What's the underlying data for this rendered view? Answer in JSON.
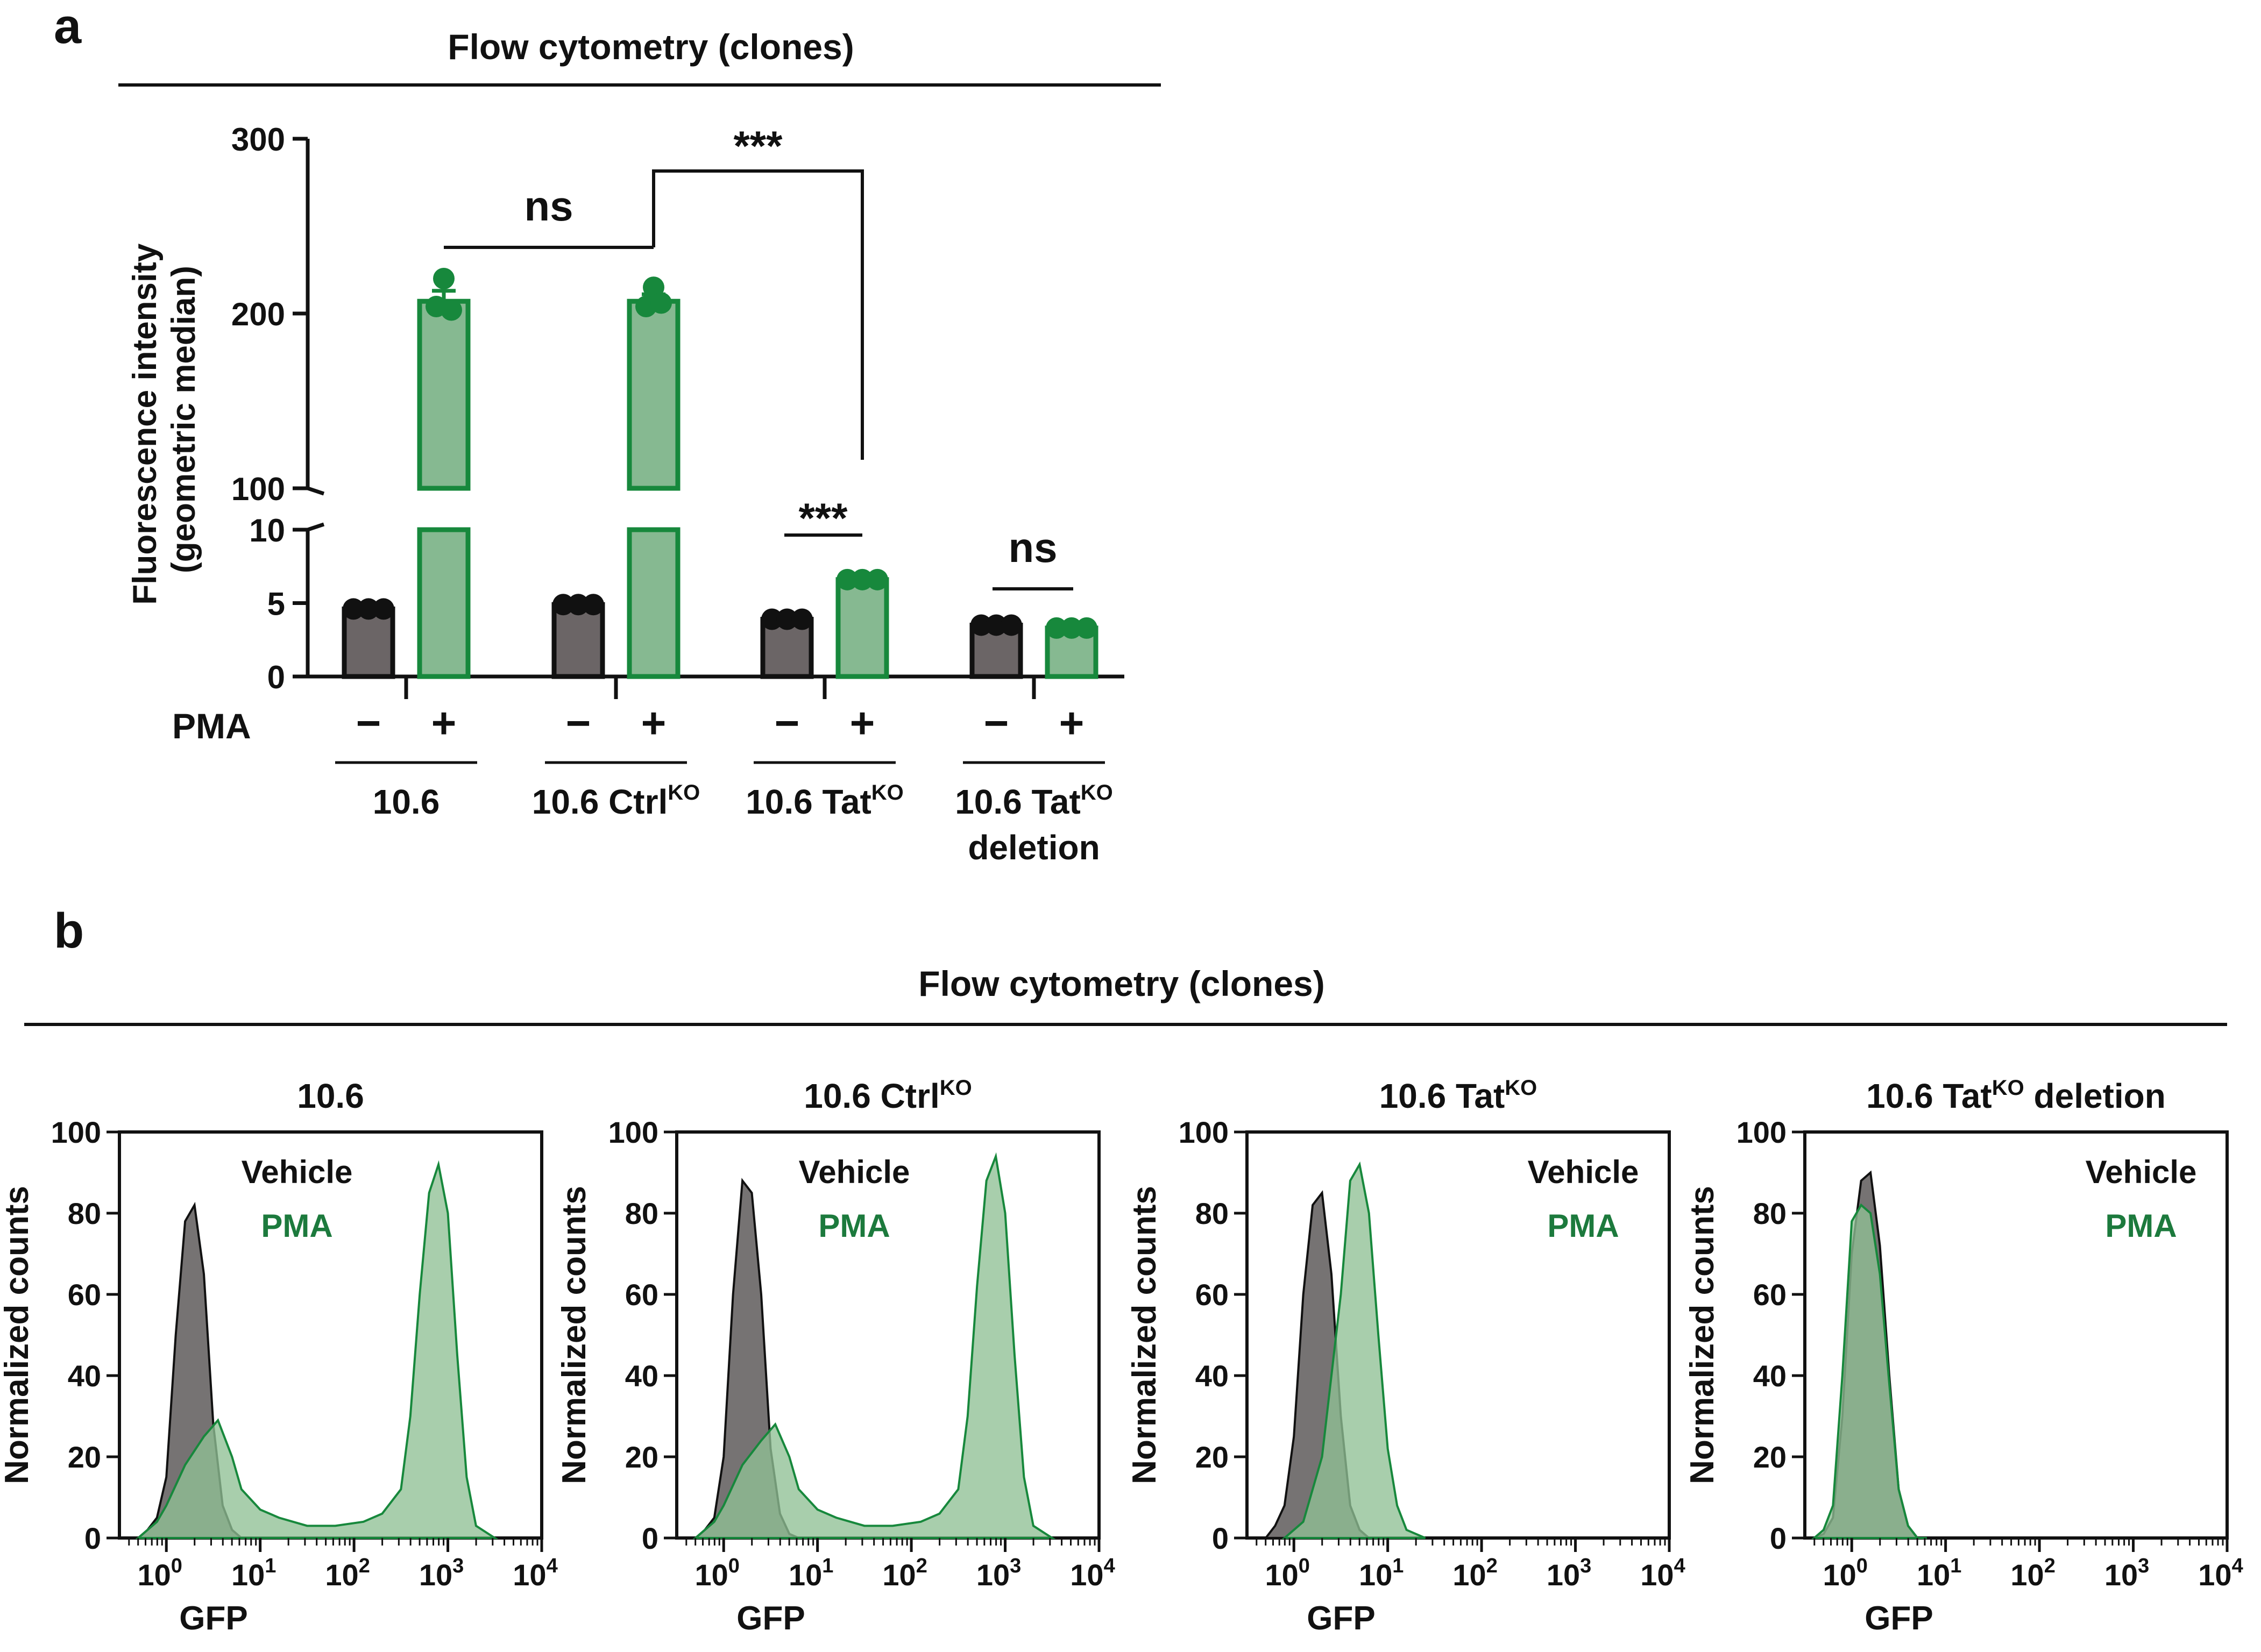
{
  "panel_a": {
    "label": "a",
    "section_title": "Flow cytometry (clones)",
    "ylabel_line1": "Fluorescence intensity",
    "ylabel_line2": "(geometric median)",
    "pma_label": "PMA",
    "minus": "−",
    "plus": "+",
    "significance": [
      "ns",
      "***",
      "***",
      "ns"
    ]
  },
  "panel_b": {
    "label": "b",
    "section_title": "Flow cytometry (clones)",
    "vehicle_label": "Vehicle",
    "pma_label": "PMA"
  },
  "colors": {
    "black_fill": "#6b6566",
    "green_fill": "#86b991",
    "green_line": "#17883c",
    "green_text": "#1c7a3d",
    "hist_black": "#6f6b6c",
    "hist_green": "#8fc095"
  },
  "chart_data": [
    {
      "type": "bar",
      "title": "Flow cytometry (clones)",
      "ylabel": "Fluorescence intensity (geometric median)",
      "y_axis": "broken",
      "ylim_lower": [
        0,
        10
      ],
      "ylim_upper": [
        100,
        300
      ],
      "yticks_lower": [
        "0",
        "5",
        "10"
      ],
      "yticks_upper": [
        "100",
        "200",
        "300"
      ],
      "categories": [
        {
          "name": "10.6",
          "sup": ""
        },
        {
          "name": "10.6 Ctrl",
          "sup": "KO"
        },
        {
          "name": "10.6 Tat",
          "sup": "KO"
        },
        {
          "name": "10.6 Tat",
          "sup": "KO",
          "line2": "deletion"
        }
      ],
      "series": [
        {
          "name": "PMA −",
          "values": [
            4.6,
            4.9,
            3.9,
            3.5
          ],
          "points": [
            [
              4.6,
              4.6,
              4.6
            ],
            [
              4.9,
              4.9,
              4.9
            ],
            [
              3.9,
              3.9,
              3.9
            ],
            [
              3.5,
              3.5,
              3.5
            ]
          ]
        },
        {
          "name": "PMA +",
          "values": [
            207,
            207,
            6.6,
            3.3
          ],
          "error": [
            6,
            4,
            0,
            0
          ],
          "points": [
            [
              220,
              204,
              202
            ],
            [
              215,
              204,
              206
            ],
            [
              6.6,
              6.6,
              6.6
            ],
            [
              3.3,
              3.3,
              3.3
            ]
          ]
        }
      ],
      "comparisons": [
        {
          "between": "10.6 + vs 10.6 CtrlKO +",
          "label": "ns"
        },
        {
          "between": "10.6 CtrlKO + vs 10.6 TatKO +",
          "label": "***"
        },
        {
          "between": "10.6 TatKO − vs +",
          "label": "***"
        },
        {
          "between": "10.6 TatKO deletion − vs +",
          "label": "ns"
        }
      ]
    },
    {
      "type": "area",
      "subtype": "histogram overlay",
      "xscale": "log",
      "xlabel": "GFP",
      "ylabel": "Normalized counts",
      "xlim": [
        -0.5,
        4
      ],
      "ylim": [
        0,
        100
      ],
      "xticks": [
        0,
        1,
        2,
        3,
        4
      ],
      "xtick_base": "10",
      "yticks": [
        "0",
        "20",
        "40",
        "60",
        "80",
        "100"
      ],
      "legend_position": "top",
      "legend": [
        "Vehicle",
        "PMA"
      ],
      "panels": [
        {
          "title": "10.6",
          "title_sup": "",
          "title_after": "",
          "legend_align": "left",
          "series": [
            {
              "name": "Vehicle",
              "x": [
                -0.3,
                -0.2,
                -0.1,
                0.0,
                0.1,
                0.2,
                0.3,
                0.4,
                0.5,
                0.6,
                0.7,
                0.8,
                0.9,
                1.0
              ],
              "y": [
                0,
                2,
                5,
                15,
                50,
                78,
                82,
                65,
                28,
                8,
                2,
                0,
                0,
                0
              ]
            },
            {
              "name": "PMA",
              "x": [
                -0.3,
                -0.1,
                0.0,
                0.2,
                0.4,
                0.55,
                0.7,
                0.8,
                1.0,
                1.2,
                1.5,
                1.8,
                2.1,
                2.3,
                2.5,
                2.6,
                2.7,
                2.8,
                2.9,
                3.0,
                3.1,
                3.2,
                3.3,
                3.5
              ],
              "y": [
                0,
                4,
                8,
                18,
                25,
                29,
                20,
                12,
                7,
                5,
                3,
                3,
                4,
                6,
                12,
                30,
                60,
                85,
                92,
                80,
                45,
                15,
                3,
                0
              ]
            }
          ]
        },
        {
          "title": "10.6 Ctrl",
          "title_sup": "KO",
          "title_after": "",
          "legend_align": "left",
          "series": [
            {
              "name": "Vehicle",
              "x": [
                -0.3,
                -0.2,
                -0.1,
                0.0,
                0.1,
                0.2,
                0.3,
                0.4,
                0.5,
                0.6,
                0.7,
                0.8,
                1.0
              ],
              "y": [
                0,
                2,
                5,
                20,
                60,
                88,
                85,
                60,
                22,
                6,
                1,
                0,
                0
              ]
            },
            {
              "name": "PMA",
              "x": [
                -0.3,
                -0.1,
                0.0,
                0.2,
                0.4,
                0.55,
                0.7,
                0.8,
                1.0,
                1.2,
                1.5,
                1.8,
                2.1,
                2.3,
                2.5,
                2.6,
                2.7,
                2.8,
                2.9,
                3.0,
                3.1,
                3.2,
                3.3,
                3.5
              ],
              "y": [
                0,
                4,
                8,
                18,
                24,
                28,
                20,
                12,
                7,
                5,
                3,
                3,
                4,
                6,
                12,
                30,
                62,
                88,
                94,
                80,
                45,
                15,
                3,
                0
              ]
            }
          ]
        },
        {
          "title": "10.6 Tat",
          "title_sup": "KO",
          "title_after": "",
          "legend_align": "right",
          "series": [
            {
              "name": "Vehicle",
              "x": [
                -0.3,
                -0.2,
                -0.1,
                0.0,
                0.1,
                0.2,
                0.3,
                0.4,
                0.5,
                0.6,
                0.7,
                0.8,
                1.0
              ],
              "y": [
                0,
                3,
                8,
                25,
                60,
                82,
                85,
                65,
                30,
                8,
                2,
                0,
                0
              ]
            },
            {
              "name": "PMA",
              "x": [
                -0.1,
                0.1,
                0.3,
                0.5,
                0.6,
                0.7,
                0.8,
                0.9,
                1.0,
                1.1,
                1.2,
                1.4
              ],
              "y": [
                0,
                4,
                20,
                60,
                88,
                92,
                80,
                50,
                22,
                8,
                2,
                0
              ]
            }
          ]
        },
        {
          "title": "10.6 Tat",
          "title_sup": "KO",
          "title_after": " deletion",
          "legend_align": "right",
          "series": [
            {
              "name": "Vehicle",
              "x": [
                -0.4,
                -0.3,
                -0.2,
                -0.1,
                0.0,
                0.1,
                0.2,
                0.3,
                0.4,
                0.5,
                0.6,
                0.7,
                0.8
              ],
              "y": [
                0,
                1,
                5,
                30,
                70,
                88,
                90,
                72,
                40,
                12,
                3,
                0,
                0
              ]
            },
            {
              "name": "PMA",
              "x": [
                -0.4,
                -0.3,
                -0.2,
                -0.1,
                0.0,
                0.1,
                0.2,
                0.3,
                0.4,
                0.5,
                0.6,
                0.7,
                0.8
              ],
              "y": [
                0,
                2,
                8,
                40,
                78,
                82,
                80,
                65,
                38,
                12,
                3,
                0,
                0
              ]
            }
          ]
        }
      ]
    }
  ]
}
